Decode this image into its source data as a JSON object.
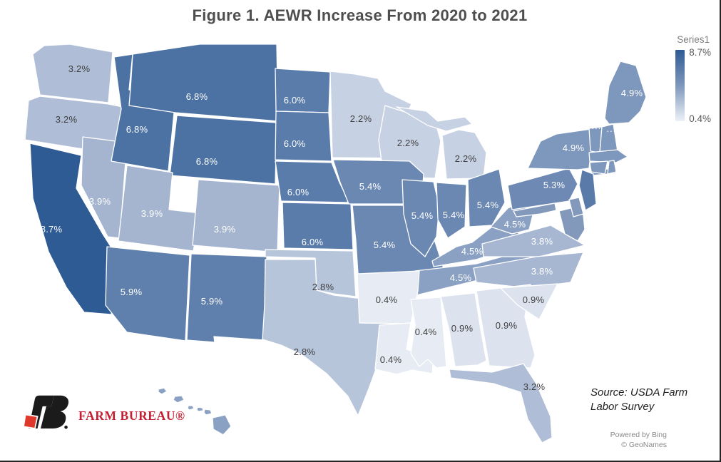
{
  "chart_data": {
    "type": "choropleth",
    "title": "Figure 1. AEWR Increase From 2020 to 2021",
    "unit": "percent",
    "legend": {
      "title": "Series1",
      "max_label": "8.7%",
      "min_label": "0.4%",
      "max_color": "#2E5B94",
      "mid_color": "#7E97BC",
      "min_color": "#EDF1F7",
      "position": "top-right"
    },
    "states": [
      {
        "id": "WA",
        "label": "3.2%",
        "value": 3.2,
        "fill": "#AFBED6",
        "label_color": "#3F3F3F"
      },
      {
        "id": "OR",
        "label": "3.2%",
        "value": 3.2,
        "fill": "#AFBED6",
        "label_color": "#3F3F3F"
      },
      {
        "id": "CA",
        "label": "8.7%",
        "value": 8.7,
        "fill": "#2E5B94",
        "label_color": "#FFFFFF"
      },
      {
        "id": "NV",
        "label": "3.9%",
        "value": 3.9,
        "fill": "#A5B5D0",
        "label_color": "#FFFFFF"
      },
      {
        "id": "ID",
        "label": "6.8%",
        "value": 6.8,
        "fill": "#4C72A4",
        "label_color": "#FFFFFF"
      },
      {
        "id": "MT",
        "label": "6.8%",
        "value": 6.8,
        "fill": "#4C72A4",
        "label_color": "#FFFFFF"
      },
      {
        "id": "WY",
        "label": "6.8%",
        "value": 6.8,
        "fill": "#4C72A4",
        "label_color": "#FFFFFF"
      },
      {
        "id": "UT",
        "label": "3.9%",
        "value": 3.9,
        "fill": "#A5B5D0",
        "label_color": "#FFFFFF"
      },
      {
        "id": "CO",
        "label": "3.9%",
        "value": 3.9,
        "fill": "#A5B5D0",
        "label_color": "#FFFFFF"
      },
      {
        "id": "AZ",
        "label": "5.9%",
        "value": 5.9,
        "fill": "#5F80AD",
        "label_color": "#FFFFFF"
      },
      {
        "id": "NM",
        "label": "5.9%",
        "value": 5.9,
        "fill": "#5F80AD",
        "label_color": "#FFFFFF"
      },
      {
        "id": "ND",
        "label": "6.0%",
        "value": 6.0,
        "fill": "#5A7CAB",
        "label_color": "#FFFFFF"
      },
      {
        "id": "SD",
        "label": "6.0%",
        "value": 6.0,
        "fill": "#5A7CAB",
        "label_color": "#FFFFFF"
      },
      {
        "id": "NE",
        "label": "6.0%",
        "value": 6.0,
        "fill": "#5A7CAB",
        "label_color": "#FFFFFF"
      },
      {
        "id": "KS",
        "label": "6.0%",
        "value": 6.0,
        "fill": "#5A7CAB",
        "label_color": "#FFFFFF"
      },
      {
        "id": "OK",
        "label": "2.8%",
        "value": 2.8,
        "fill": "#B7C5DB",
        "label_color": "#3F3F3F"
      },
      {
        "id": "TX",
        "label": "2.8%",
        "value": 2.8,
        "fill": "#B7C5DB",
        "label_color": "#3F3F3F"
      },
      {
        "id": "MN",
        "label": "2.2%",
        "value": 2.2,
        "fill": "#C6D1E3",
        "label_color": "#3F3F3F"
      },
      {
        "id": "WI",
        "label": "2.2%",
        "value": 2.2,
        "fill": "#C6D1E3",
        "label_color": "#3F3F3F"
      },
      {
        "id": "MI",
        "label": "2.2%",
        "value": 2.2,
        "fill": "#C6D1E3",
        "label_color": "#3F3F3F"
      },
      {
        "id": "IA",
        "label": "5.4%",
        "value": 5.4,
        "fill": "#6B88B3",
        "label_color": "#FFFFFF"
      },
      {
        "id": "MO",
        "label": "5.4%",
        "value": 5.4,
        "fill": "#6B88B3",
        "label_color": "#FFFFFF"
      },
      {
        "id": "IL",
        "label": "5.4%",
        "value": 5.4,
        "fill": "#6B88B3",
        "label_color": "#FFFFFF"
      },
      {
        "id": "IN",
        "label": "5.4%",
        "value": 5.4,
        "fill": "#6B88B3",
        "label_color": "#FFFFFF"
      },
      {
        "id": "OH",
        "label": "5.4%",
        "value": 5.4,
        "fill": "#6B88B3",
        "label_color": "#FFFFFF"
      },
      {
        "id": "KY",
        "label": "4.5%",
        "value": 4.5,
        "fill": "#8BA1C3",
        "label_color": "#FFFFFF"
      },
      {
        "id": "TN",
        "label": "4.5%",
        "value": 4.5,
        "fill": "#8BA1C3",
        "label_color": "#FFFFFF"
      },
      {
        "id": "WV",
        "label": "4.5%",
        "value": 4.5,
        "fill": "#8BA1C3",
        "label_color": "#FFFFFF"
      },
      {
        "id": "VA",
        "label": "3.8%",
        "value": 3.8,
        "fill": "#A8B7D1",
        "label_color": "#FFFFFF"
      },
      {
        "id": "NC",
        "label": "3.8%",
        "value": 3.8,
        "fill": "#A8B7D1",
        "label_color": "#FFFFFF"
      },
      {
        "id": "AR",
        "label": "0.4%",
        "value": 0.4,
        "fill": "#E7ECF4",
        "label_color": "#3F3F3F"
      },
      {
        "id": "LA",
        "label": "0.4%",
        "value": 0.4,
        "fill": "#E7ECF4",
        "label_color": "#3F3F3F"
      },
      {
        "id": "MS",
        "label": "0.4%",
        "value": 0.4,
        "fill": "#E7ECF4",
        "label_color": "#3F3F3F"
      },
      {
        "id": "AL",
        "label": "0.9%",
        "value": 0.9,
        "fill": "#DCE3EE",
        "label_color": "#3F3F3F"
      },
      {
        "id": "GA",
        "label": "0.9%",
        "value": 0.9,
        "fill": "#DCE3EE",
        "label_color": "#3F3F3F"
      },
      {
        "id": "SC",
        "label": "0.9%",
        "value": 0.9,
        "fill": "#DCE3EE",
        "label_color": "#3F3F3F"
      },
      {
        "id": "FL",
        "label": "3.2%",
        "value": 3.2,
        "fill": "#AFBED6",
        "label_color": "#3F3F3F"
      },
      {
        "id": "PA",
        "label": "5.3%",
        "value": 5.3,
        "fill": "#6E8AB4",
        "label_color": "#FFFFFF"
      },
      {
        "id": "NY",
        "label": "4.9%",
        "value": 4.9,
        "fill": "#7E97BC",
        "label_color": "#FFFFFF"
      },
      {
        "id": "ME",
        "label": "4.9%",
        "value": 4.9,
        "fill": "#7E97BC",
        "label_color": "#FFFFFF"
      },
      {
        "id": "VT",
        "label": "···",
        "value": null,
        "fill": "#7E97BC",
        "label_color": "#FFFFFF"
      },
      {
        "id": "NH",
        "label": "···",
        "value": null,
        "fill": "#7E97BC",
        "label_color": "#FFFFFF"
      },
      {
        "id": "MA",
        "label": "",
        "value": null,
        "fill": "#7E97BC",
        "label_color": "#FFFFFF"
      },
      {
        "id": "CT",
        "label": "",
        "value": null,
        "fill": "#7E97BC",
        "label_color": "#FFFFFF"
      },
      {
        "id": "RI",
        "label": "",
        "value": null,
        "fill": "#7E97BC",
        "label_color": "#FFFFFF"
      },
      {
        "id": "NJ",
        "label": "",
        "value": null,
        "fill": "#5A7AA9",
        "label_color": "#FFFFFF"
      },
      {
        "id": "MD",
        "label": "",
        "value": null,
        "fill": "#8299BC",
        "label_color": "#FFFFFF"
      },
      {
        "id": "DE",
        "label": "",
        "value": null,
        "fill": "#8299BC",
        "label_color": "#FFFFFF"
      },
      {
        "id": "HI",
        "label": "",
        "value": null,
        "fill": "#8BA1C4",
        "label_color": "#FFFFFF"
      }
    ]
  },
  "source_note": {
    "line1": "Source: USDA Farm",
    "line2": "Labor Survey"
  },
  "map_attribution": {
    "line1": "Powered by Bing",
    "line2": "© GeoNames"
  },
  "logo": {
    "brand": "FARM BUREAU®",
    "mark_black": "#1b1b1b",
    "mark_red": "#E0392C",
    "text_color": "#C41E31"
  }
}
